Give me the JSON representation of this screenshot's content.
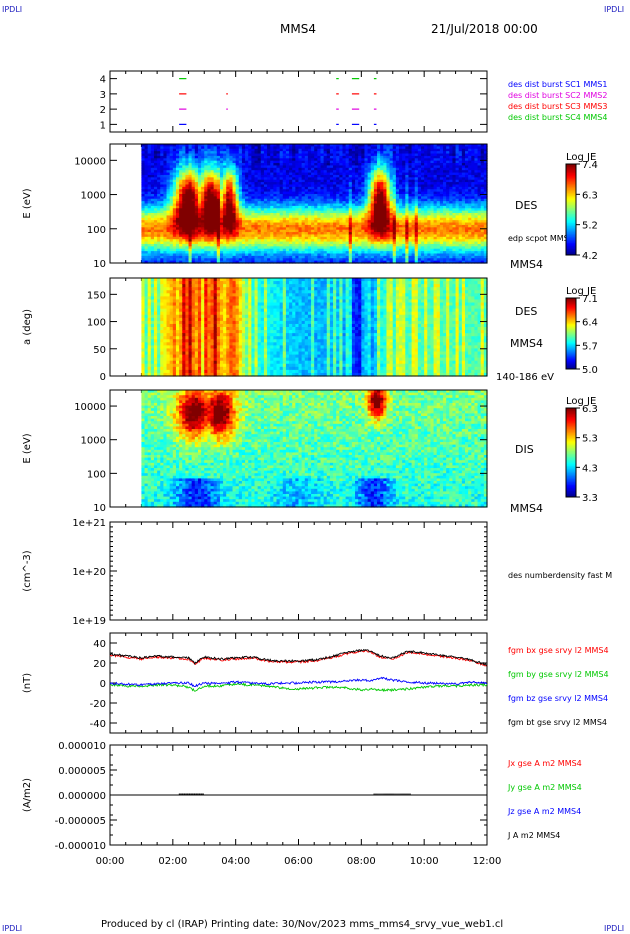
{
  "corners": {
    "tl": "IPDLI",
    "tr": "IPDLI",
    "bl": "IPDLI",
    "br": "IPDLI"
  },
  "header": {
    "spacecraft": "MMS4",
    "date": "21/Jul/2018 00:00"
  },
  "footer": "Produced by cl (IRAP)   Printing date: 30/Nov/2023   mms_mms4_srvy_vue_web1.cl",
  "time_axis": {
    "ticks": [
      "00:00",
      "02:00",
      "04:00",
      "06:00",
      "08:00",
      "10:00",
      "12:00"
    ]
  },
  "colors": {
    "red": "#ff0000",
    "green": "#00c800",
    "blue": "#0000ff",
    "black": "#000000",
    "magenta": "#e000e0"
  },
  "chart_data": [
    {
      "type": "scatter",
      "panel": "burst-availability",
      "yticks": [
        "4",
        "3",
        "2",
        "1"
      ],
      "ylim": [
        0.5,
        4.5
      ],
      "legend": [
        {
          "label": "des dist burst SC1 MMS1",
          "color": "#0000ff"
        },
        {
          "label": "des dist burst SC2 MMS2",
          "color": "#e000e0"
        },
        {
          "label": "des dist burst SC3 MMS3",
          "color": "#ff0000"
        },
        {
          "label": "des dist burst SC4 MMS4",
          "color": "#00c800"
        }
      ],
      "series": [
        {
          "level": 4,
          "color": "#00c800",
          "segments": [
            [
              2.2,
              2.4
            ],
            [
              7.2,
              7.25
            ],
            [
              7.7,
              7.9
            ],
            [
              8.4,
              8.45
            ]
          ]
        },
        {
          "level": 3,
          "color": "#ff0000",
          "segments": [
            [
              2.2,
              2.4
            ],
            [
              3.7,
              3.72
            ],
            [
              7.2,
              7.25
            ],
            [
              7.7,
              7.9
            ],
            [
              8.4,
              8.45
            ]
          ]
        },
        {
          "level": 2,
          "color": "#e000e0",
          "segments": [
            [
              2.2,
              2.4
            ],
            [
              3.7,
              3.72
            ],
            [
              7.2,
              7.25
            ],
            [
              7.7,
              7.9
            ],
            [
              8.4,
              8.45
            ]
          ]
        },
        {
          "level": 1,
          "color": "#0000ff",
          "segments": [
            [
              2.2,
              2.4
            ],
            [
              7.2,
              7.25
            ],
            [
              7.7,
              7.9
            ],
            [
              8.4,
              8.45
            ]
          ]
        }
      ]
    },
    {
      "type": "heatmap",
      "panel": "des-energy",
      "ylabel": "E (eV)",
      "yscale": "log",
      "yticks": [
        "10000",
        "1000",
        "100",
        "10"
      ],
      "ylim": [
        10,
        30000
      ],
      "label": "DES",
      "overlay_label": "edp scpot MMS4",
      "sc_label": "MMS4",
      "colorbar": {
        "title": "Log JE",
        "ticks": [
          "7.4",
          "6.3",
          "5.2",
          "4.2"
        ],
        "min": 4.2,
        "max": 7.4
      }
    },
    {
      "type": "heatmap",
      "panel": "des-pitch",
      "ylabel": "a (deg)",
      "yticks": [
        "150",
        "100",
        "50",
        "0"
      ],
      "ylim": [
        0,
        180
      ],
      "label": "DES",
      "sc_label": "MMS4",
      "energy_label": "140-186 eV",
      "colorbar": {
        "title": "Log JE",
        "ticks": [
          "7.1",
          "6.4",
          "5.7",
          "5.0"
        ],
        "min": 5.0,
        "max": 7.1
      }
    },
    {
      "type": "heatmap",
      "panel": "dis-energy",
      "ylabel": "E (eV)",
      "yscale": "log",
      "yticks": [
        "10000",
        "1000",
        "100",
        "10"
      ],
      "ylim": [
        10,
        30000
      ],
      "label": "DIS",
      "sc_label": "MMS4",
      "colorbar": {
        "title": "Log JE",
        "ticks": [
          "6.3",
          "5.3",
          "4.3",
          "3.3"
        ],
        "min": 3.3,
        "max": 6.3
      }
    },
    {
      "type": "line",
      "panel": "density",
      "ylabel": "(cm^-3)",
      "yscale": "log",
      "yticks": [
        "1e+21",
        "1e+20",
        "1e+19"
      ],
      "ylim": [
        1e+19,
        1e+21
      ],
      "legend": [
        {
          "label": "des numberdensity fast M",
          "color": "#000000"
        }
      ],
      "series": []
    },
    {
      "type": "line",
      "panel": "magnetic-field",
      "ylabel": "(nT)",
      "yticks": [
        "40",
        "20",
        "0",
        "-20",
        "-40"
      ],
      "ylim": [
        -50,
        50
      ],
      "legend": [
        {
          "label": "fgm bx gse srvy l2 MMS4",
          "color": "#ff0000"
        },
        {
          "label": "fgm by gse srvy l2 MMS4",
          "color": "#00c800"
        },
        {
          "label": "fgm bz gse srvy l2 MMS4",
          "color": "#0000ff"
        },
        {
          "label": "fgm bt gse srvy l2 MMS4",
          "color": "#000000"
        }
      ],
      "x": [
        0,
        0.5,
        1,
        1.5,
        2,
        2.5,
        2.7,
        3,
        3.5,
        4,
        4.5,
        5,
        5.5,
        6,
        6.5,
        7,
        7.5,
        8,
        8.3,
        8.6,
        9,
        9.5,
        10,
        10.5,
        11,
        11.5,
        12
      ],
      "series": [
        {
          "name": "fgm bt gse srvy l2 MMS4",
          "color": "#000000",
          "values": [
            29,
            27,
            25,
            27,
            26,
            25,
            20,
            26,
            24,
            25,
            26,
            23,
            22,
            22,
            23,
            26,
            30,
            33,
            32,
            27,
            25,
            32,
            30,
            28,
            26,
            23,
            18
          ]
        },
        {
          "name": "fgm bx gse srvy l2 MMS4",
          "color": "#ff0000",
          "values": [
            28,
            26,
            24,
            26,
            25,
            24,
            19,
            25,
            23,
            24,
            25,
            22,
            21,
            21,
            22,
            25,
            29,
            32,
            31,
            26,
            24,
            31,
            29,
            27,
            25,
            22,
            17
          ]
        },
        {
          "name": "fgm bz gse srvy l2 MMS4",
          "color": "#0000ff",
          "values": [
            0,
            -1,
            -2,
            -1,
            0,
            0,
            -3,
            0,
            -1,
            1,
            0,
            -1,
            0,
            0,
            1,
            1,
            2,
            3,
            2,
            5,
            3,
            1,
            0,
            0,
            -1,
            1,
            0
          ]
        },
        {
          "name": "fgm by gse srvy l2 MMS4",
          "color": "#00c800",
          "values": [
            -2,
            -3,
            -3,
            -2,
            -2,
            -4,
            -8,
            -3,
            -3,
            -1,
            -2,
            -3,
            -5,
            -6,
            -5,
            -4,
            -5,
            -7,
            -6,
            -7,
            -7,
            -6,
            -4,
            -3,
            -3,
            -2,
            -2
          ]
        }
      ]
    },
    {
      "type": "line",
      "panel": "current-density",
      "ylabel": "(A/m2)",
      "yticks": [
        "0.000010",
        "0.000005",
        "0.000000",
        "-0.000005",
        "-0.000010"
      ],
      "ylim": [
        -1e-05,
        1e-05
      ],
      "legend": [
        {
          "label": "Jx gse A m2 MMS4",
          "color": "#ff0000"
        },
        {
          "label": "Jy gse A m2 MMS4",
          "color": "#00c800"
        },
        {
          "label": "Jz gse A m2 MMS4",
          "color": "#0000ff"
        },
        {
          "label": "J A m2 MMS4",
          "color": "#000000"
        }
      ],
      "x": [
        0,
        12
      ],
      "series": [
        {
          "name": "J A m2 MMS4",
          "color": "#000000",
          "values": [
            0,
            0
          ]
        }
      ]
    }
  ]
}
